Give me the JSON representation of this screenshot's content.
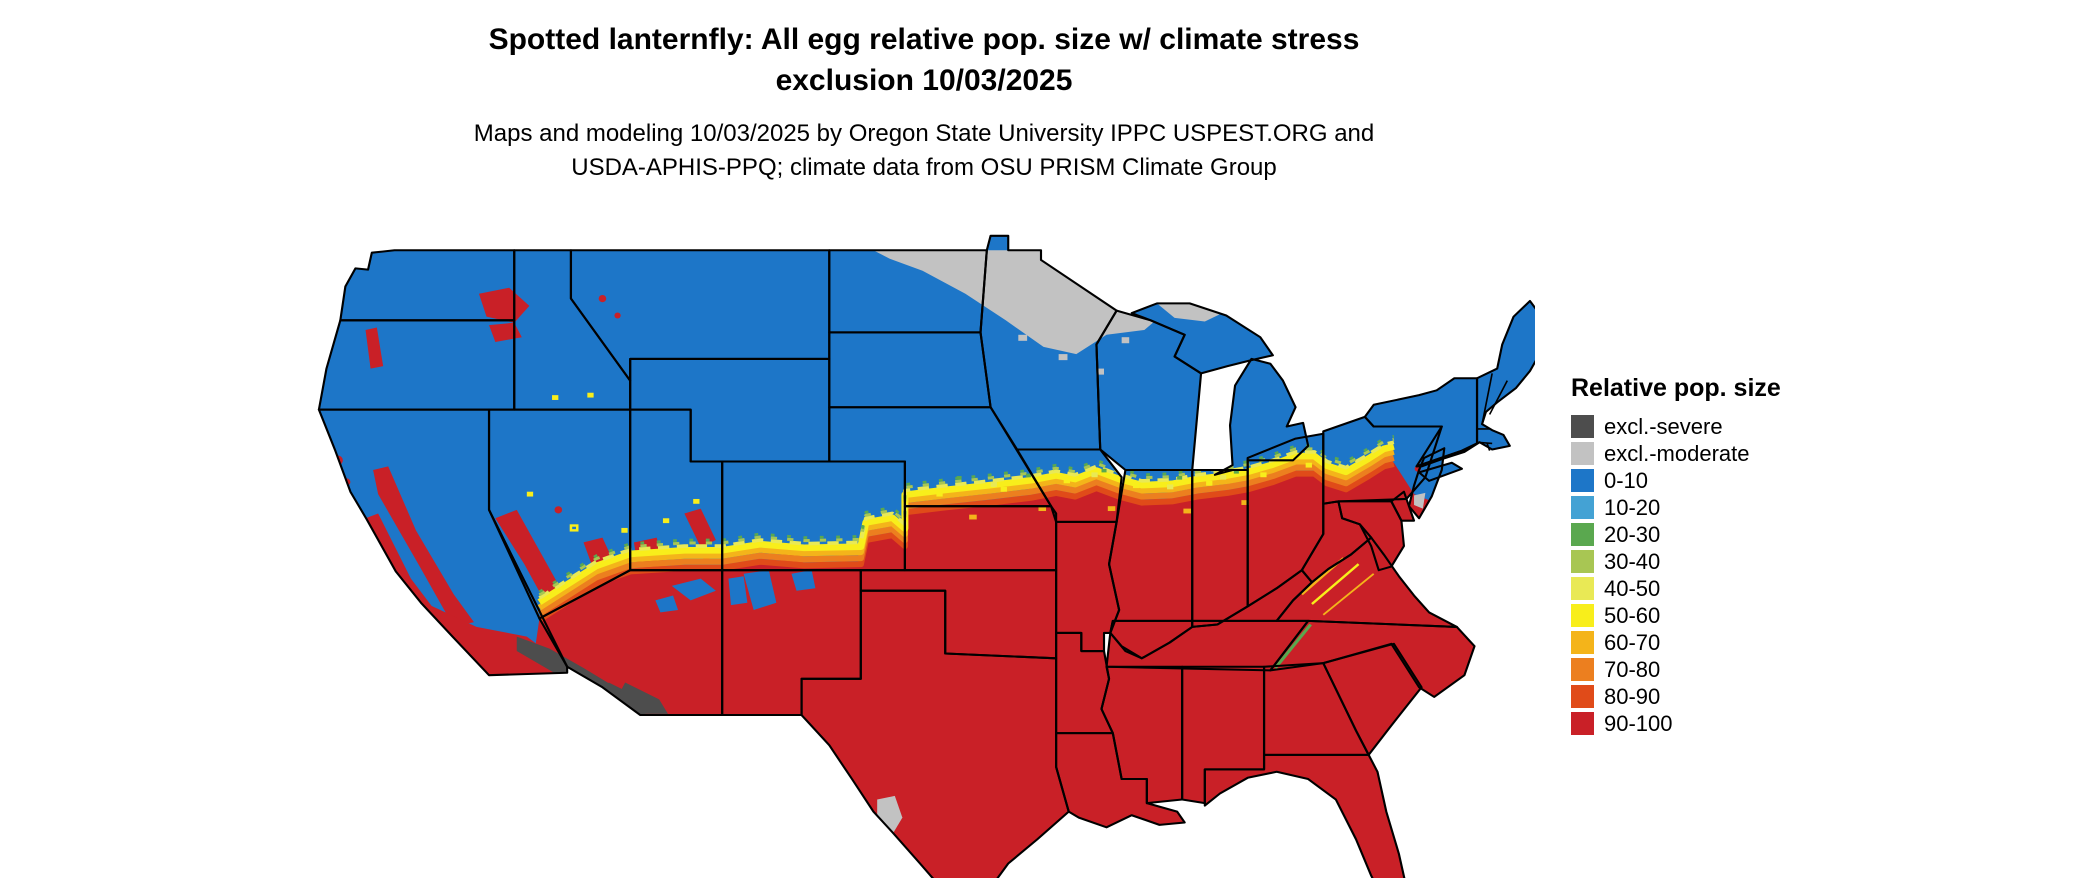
{
  "title": {
    "line1": "Spotted lanternfly: All egg relative pop. size w/ climate stress",
    "line2": "exclusion 10/03/2025"
  },
  "subtitle": {
    "line1": "Maps and modeling 10/03/2025 by Oregon State University IPPC USPEST.ORG and",
    "line2": "USDA-APHIS-PPQ; climate data from OSU PRISM Climate Group"
  },
  "legend": {
    "title": "Relative pop. size",
    "items": [
      {
        "key": "severe",
        "label": "excl.-severe",
        "color": "#4d4d4d"
      },
      {
        "key": "moderate",
        "label": "excl.-moderate",
        "color": "#c2c2c2"
      },
      {
        "key": "c0",
        "label": "0-10",
        "color": "#1d76c8"
      },
      {
        "key": "c1",
        "label": "10-20",
        "color": "#44a2d4"
      },
      {
        "key": "c2",
        "label": "20-30",
        "color": "#5aa84f"
      },
      {
        "key": "c3",
        "label": "30-40",
        "color": "#a8c653"
      },
      {
        "key": "c4",
        "label": "40-50",
        "color": "#e9e955"
      },
      {
        "key": "c5",
        "label": "50-60",
        "color": "#f8ee1b"
      },
      {
        "key": "c6",
        "label": "60-70",
        "color": "#f4b41a"
      },
      {
        "key": "c7",
        "label": "70-80",
        "color": "#ec7f1f"
      },
      {
        "key": "c8",
        "label": "80-90",
        "color": "#e04b19"
      },
      {
        "key": "c9",
        "label": "90-100",
        "color": "#c92027"
      }
    ]
  },
  "map": {
    "region": "Continental United States",
    "visible_pattern": {
      "north": "0-10 (blue) across the northern tier of states",
      "far_north": "excl.-moderate (gray) band over northern North Dakota and Minnesota",
      "south": "90-100 (red) across the entire southern half of the country",
      "transition": "yellow-orange gradient band running from central Kansas through Iowa, Illinois, Indiana, Ohio and Pennsylvania",
      "southwest": "excl.-severe (dark gray) over southwest Arizona and southeast California desert",
      "west_coast": "90-100 (red) in California Central Valley, coastal and southern California",
      "small_gray_spots": "excl.-moderate patches in south Texas and coastal New Jersey"
    }
  }
}
